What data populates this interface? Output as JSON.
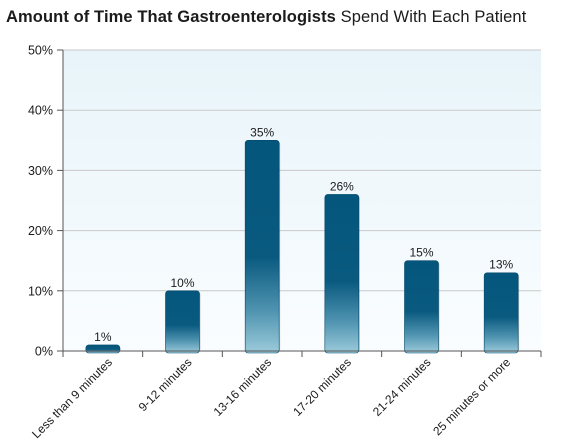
{
  "title": {
    "bold": "Amount of Time That Gastroenterologists",
    "light": "Spend With Each Patient"
  },
  "colors": {
    "bar_top": "#04567c",
    "bar_bottom": "#8fc3d6",
    "plot_bg_top": "#e8f4fa",
    "plot_bg_bottom": "#fafdff",
    "grid": "#c9c9c9",
    "text": "#1b1b1b"
  },
  "chart_data": {
    "type": "bar",
    "title": "Amount of Time That Gastroenterologists Spend With Each Patient",
    "categories": [
      "Less than 9 minutes",
      "9-12 minutes",
      "13-16 minutes",
      "17-20 minutes",
      "21-24 minutes",
      "25 minutes or more"
    ],
    "values": [
      1,
      10,
      35,
      26,
      15,
      13
    ],
    "data_labels": [
      "1%",
      "10%",
      "35%",
      "26%",
      "15%",
      "13%"
    ],
    "ylim": [
      0,
      50
    ],
    "yticks": [
      0,
      10,
      20,
      30,
      40,
      50
    ],
    "ytick_labels": [
      "0%",
      "10%",
      "20%",
      "30%",
      "40%",
      "50%"
    ],
    "xlabel": "",
    "ylabel": "",
    "grid": true
  }
}
